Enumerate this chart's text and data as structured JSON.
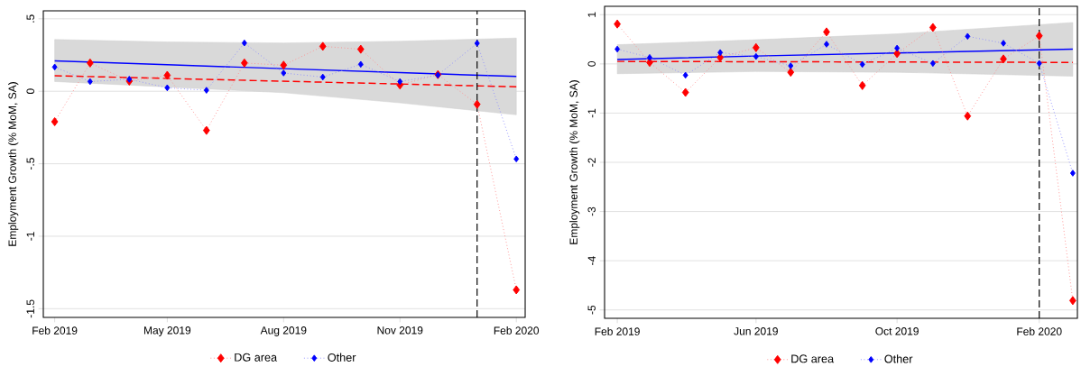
{
  "chart_data": [
    {
      "type": "line",
      "ylabel": "Employment Growth (% MoM, SA)",
      "x": [
        "2019-02",
        "2019-03",
        "2019-04",
        "2019-05",
        "2019-06",
        "2019-07",
        "2019-08",
        "2019-09",
        "2019-10",
        "2019-11",
        "2019-12",
        "2020-01",
        "2020-02"
      ],
      "xlim": [
        "2019-01-23",
        "2020-02-08"
      ],
      "xticks": [
        {
          "value": "2019-02",
          "label": "Feb 2019"
        },
        {
          "value": "2019-05",
          "label": "May 2019"
        },
        {
          "value": "2019-08",
          "label": "Aug 2019"
        },
        {
          "value": "2019-11",
          "label": "Nov 2019"
        },
        {
          "value": "2020-02",
          "label": "Feb 2020"
        }
      ],
      "ylim": [
        -1.56,
        0.555
      ],
      "yticks": [
        {
          "value": 0.5,
          "label": ".5"
        },
        0,
        {
          "value": -0.5,
          "label": "-.5"
        },
        -1,
        -1.5
      ],
      "grid": "y",
      "legend": "bottom",
      "marker": "diamond",
      "line_style": "dotted",
      "ref_lines": [
        {
          "axis": "x",
          "value": "2020-01",
          "color": "#000000",
          "line_style": "dashed"
        }
      ],
      "series": [
        {
          "name": "DG area",
          "color": "#ff0000",
          "values": [
            -0.21,
            0.195,
            0.07,
            0.11,
            -0.27,
            0.195,
            0.18,
            0.31,
            0.29,
            0.043,
            0.115,
            -0.09,
            -1.37
          ]
        },
        {
          "name": "Other",
          "color": "#0000ff",
          "values": [
            0.167,
            0.067,
            0.083,
            0.024,
            0.007,
            0.333,
            0.126,
            0.098,
            0.186,
            0.067,
            0.112,
            0.331,
            -0.467
          ]
        },
        {
          "type": "line",
          "color": "#0000ff",
          "marker": "none",
          "line_style": "solid",
          "x": [
            "2019-02",
            "2019-05",
            "2019-08",
            "2019-11",
            "2020-02"
          ],
          "values": [
            0.21,
            0.183,
            0.156,
            0.129,
            0.102
          ],
          "lower": [
            0.067,
            0.03,
            -0.01,
            -0.08,
            -0.162
          ],
          "upper": [
            0.357,
            0.34,
            0.333,
            0.345,
            0.367
          ]
        },
        {
          "type": "line",
          "color": "#ff0000",
          "marker": "none",
          "line_style": "dashed",
          "x": [
            "2019-02",
            "2020-02"
          ],
          "values": [
            0.107,
            0.031
          ]
        }
      ]
    },
    {
      "type": "line",
      "ylabel": "Employment Growth (% MoM, SA)",
      "x": [
        "2019-02",
        "2019-03",
        "2019-04",
        "2019-05",
        "2019-06",
        "2019-07",
        "2019-08",
        "2019-09",
        "2019-10",
        "2019-11",
        "2019-12",
        "2020-01",
        "2020-02",
        "2020-03"
      ],
      "xlim": [
        "2019-01-21",
        "2020-03-05"
      ],
      "xticks": [
        {
          "value": "2019-02",
          "label": "Feb 2019"
        },
        {
          "value": "2019-06",
          "label": "Jun 2019"
        },
        {
          "value": "2019-10",
          "label": "Oct 2019"
        },
        {
          "value": "2020-02",
          "label": "Feb 2020"
        }
      ],
      "ylim": [
        -5.17,
        1.17
      ],
      "yticks": [
        1,
        0,
        -1,
        -2,
        -3,
        -4,
        -5
      ],
      "grid": "y",
      "legend": "bottom",
      "marker": "diamond",
      "line_style": "dotted",
      "ref_lines": [
        {
          "axis": "x",
          "value": "2020-02",
          "color": "#000000",
          "line_style": "dashed"
        }
      ],
      "series": [
        {
          "name": "DG area",
          "color": "#ff0000",
          "values": [
            0.81,
            0.03,
            -0.58,
            0.13,
            0.33,
            -0.17,
            0.65,
            -0.44,
            0.21,
            0.74,
            -1.06,
            0.1,
            0.57,
            -4.81
          ]
        },
        {
          "name": "Other",
          "color": "#0000ff",
          "values": [
            0.3,
            0.13,
            -0.23,
            0.23,
            0.15,
            -0.04,
            0.4,
            -0.01,
            0.32,
            0.01,
            0.56,
            0.42,
            0.01,
            -2.22
          ]
        },
        {
          "type": "line",
          "color": "#0000ff",
          "marker": "none",
          "line_style": "solid",
          "x": [
            "2019-02",
            "2019-06",
            "2019-10",
            "2020-03"
          ],
          "values": [
            0.09,
            0.16,
            0.22,
            0.3
          ],
          "lower": [
            -0.2,
            -0.155,
            -0.17,
            -0.25
          ],
          "upper": [
            0.39,
            0.49,
            0.61,
            0.84
          ]
        },
        {
          "type": "line",
          "color": "#ff0000",
          "marker": "none",
          "line_style": "dashed",
          "x": [
            "2019-02",
            "2020-03"
          ],
          "values": [
            0.05,
            0.03
          ]
        }
      ]
    }
  ]
}
